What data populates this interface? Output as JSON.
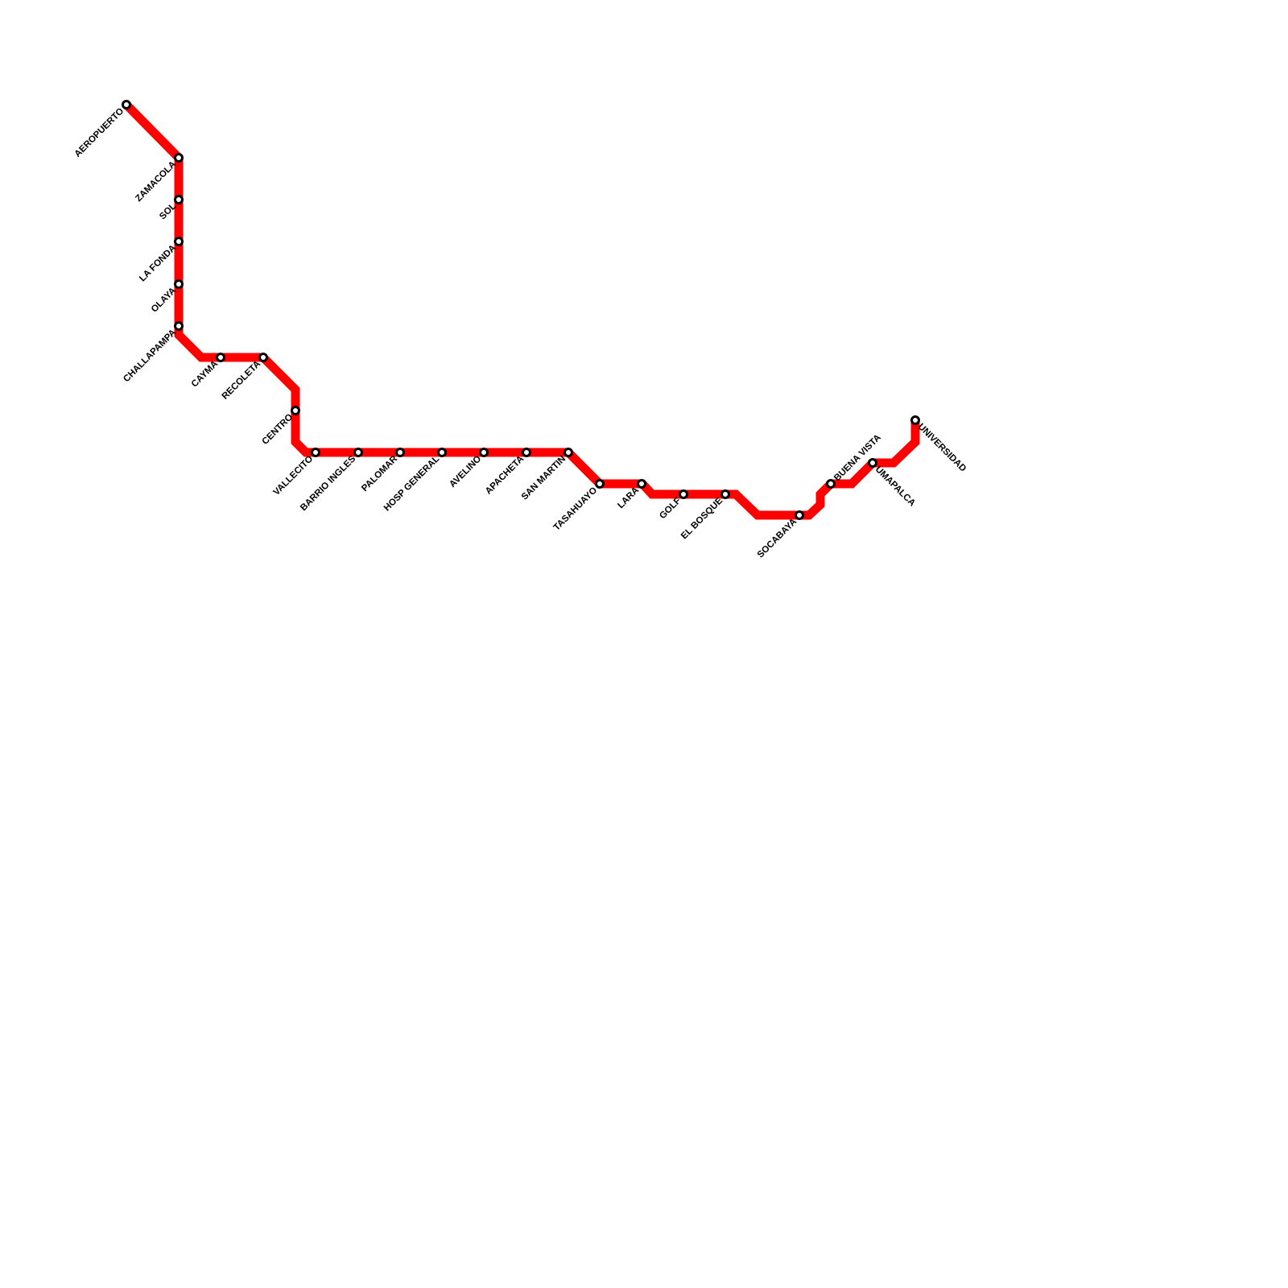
{
  "line": {
    "color": "#ff0000",
    "station_stroke": "#000000",
    "station_fill": "#ffffff"
  },
  "stations": [
    {
      "name": "AEROPUERTO"
    },
    {
      "name": "ZAMACOLA"
    },
    {
      "name": "SOL"
    },
    {
      "name": "LA FONDA"
    },
    {
      "name": "OLAYA"
    },
    {
      "name": "CHALLAPAMPA"
    },
    {
      "name": "CAYMA"
    },
    {
      "name": "RECOLETA"
    },
    {
      "name": "CENTRO"
    },
    {
      "name": "VALLECITO"
    },
    {
      "name": "BARRIO INGLES"
    },
    {
      "name": "PALOMAR"
    },
    {
      "name": "HOSP GENERAL"
    },
    {
      "name": "AVELINO"
    },
    {
      "name": "APACHETA"
    },
    {
      "name": "SAN MARTIN"
    },
    {
      "name": "TASAHUAYO"
    },
    {
      "name": "LARA"
    },
    {
      "name": "GOLF"
    },
    {
      "name": "EL BOSQUE"
    },
    {
      "name": "SOCABAYA"
    },
    {
      "name": "BUENA VISTA"
    },
    {
      "name": "UMAPALCA"
    },
    {
      "name": "UNIVERSIDAD"
    }
  ]
}
